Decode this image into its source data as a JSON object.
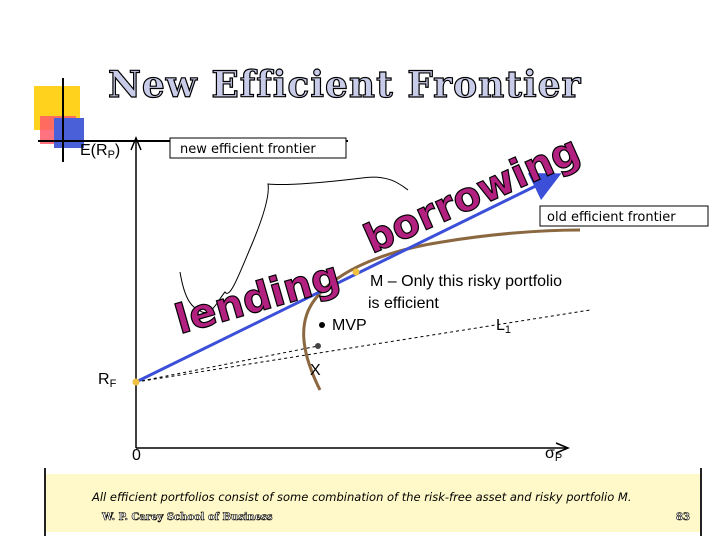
{
  "title": "New Efficient Frontier",
  "axes": {
    "y_label_main": "E(R",
    "y_label_sub": "P",
    "y_label_close": ")",
    "x_label_sigma": "σ",
    "x_label_sub": "P",
    "origin": "0"
  },
  "labels": {
    "new_frontier": "new efficient frontier",
    "old_frontier": "old efficient frontier",
    "m_line1": "M – Only this risky portfolio",
    "m_line2": "is efficient",
    "mvp": "MVP",
    "x_point": "X",
    "l_main": "L",
    "l_sub": "1",
    "rf_main": "R",
    "rf_sub": "F",
    "lending": "lending",
    "borrowing": "borrowing"
  },
  "footer": {
    "text": "All efficient portfolios consist of some combination of the risk-free asset and risky portfolio M.",
    "school": "W. P. Carey School of Business",
    "page": "83"
  },
  "colors": {
    "new_frontier": "#3b4fd8",
    "old_frontier": "#8b6840",
    "words": "#b22080",
    "point": "#f0c040"
  }
}
